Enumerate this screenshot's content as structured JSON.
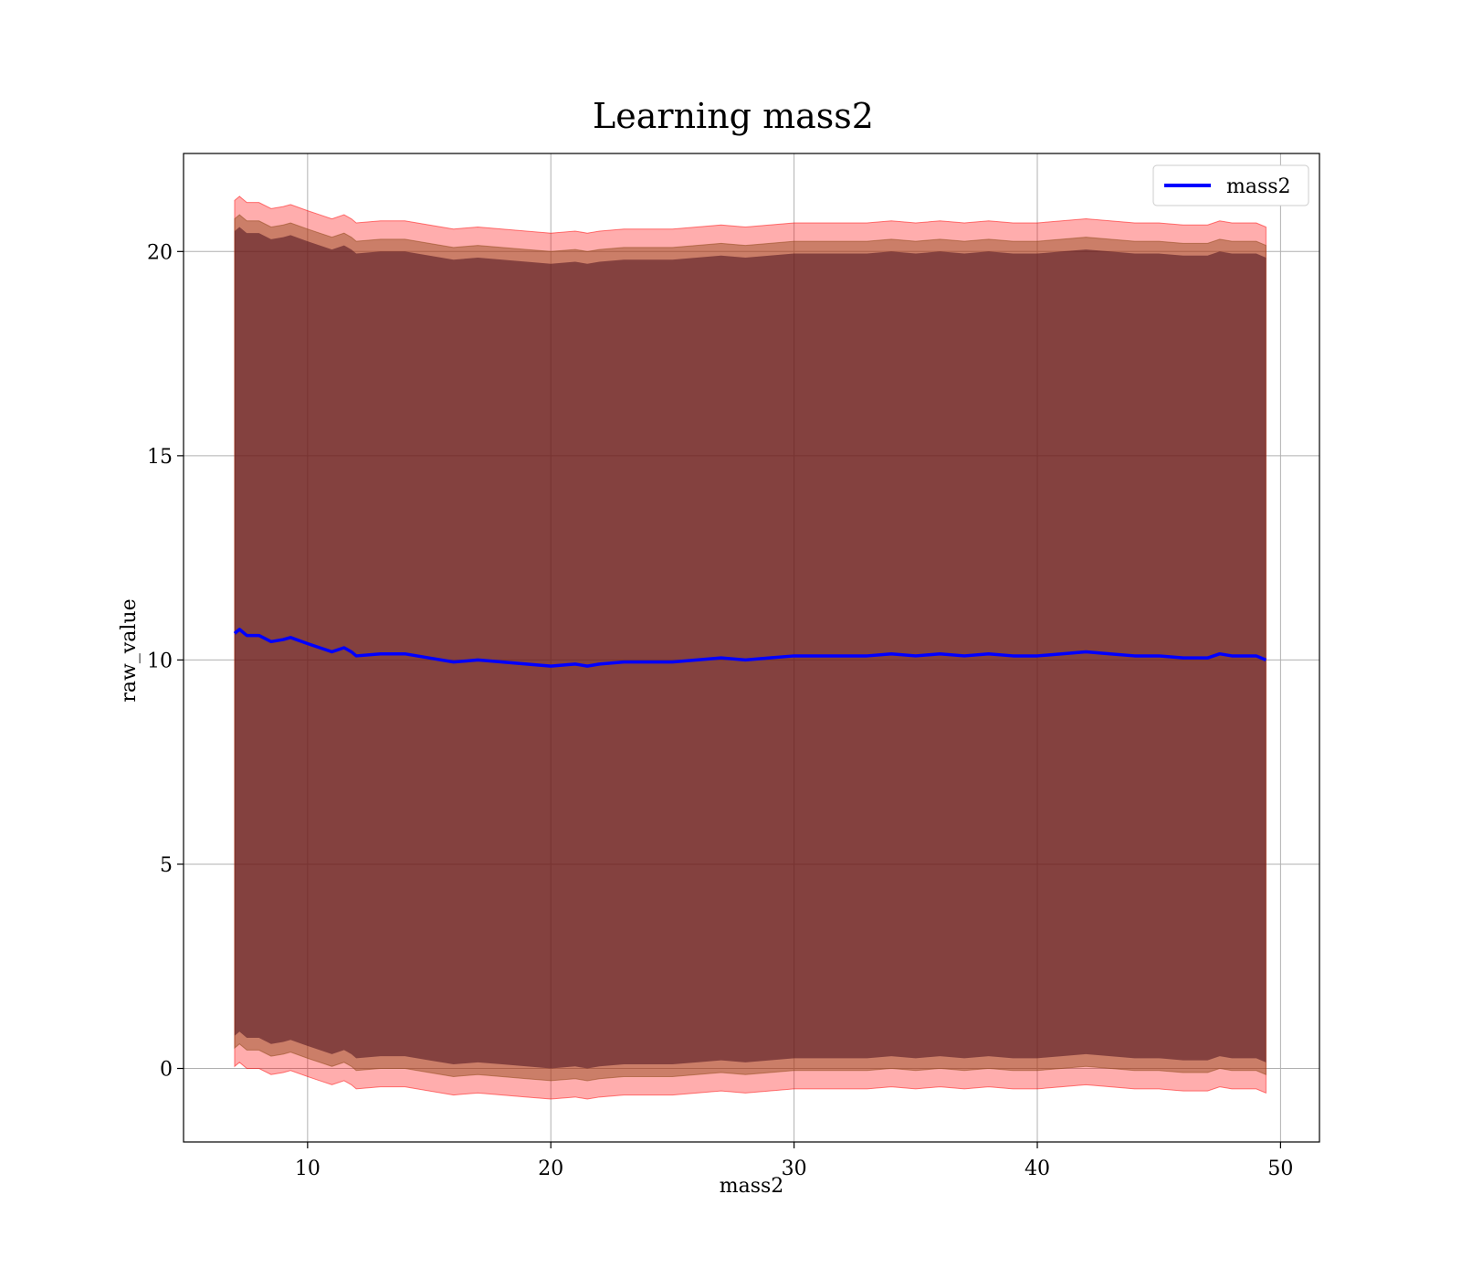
{
  "chart_data": {
    "type": "line",
    "title": "Learning mass2",
    "xlabel": "mass2",
    "ylabel": "raw_value",
    "xlim": [
      4.9,
      51.6
    ],
    "ylim": [
      -1.8,
      22.4
    ],
    "xticks": [
      10,
      20,
      30,
      40,
      50
    ],
    "yticks": [
      0,
      5,
      10,
      15,
      20
    ],
    "grid": true,
    "legend_position": "top-right",
    "colors": {
      "line": "#0000ff",
      "band_outer": "#ff0000",
      "band_inner": "#8b4513",
      "band_core": "#4b0f1e",
      "axes": "#000000",
      "grid": "#b0b0b0"
    },
    "series": [
      {
        "name": "mass2",
        "x": [
          7.0,
          7.2,
          7.5,
          8.0,
          8.5,
          9.0,
          9.3,
          10.0,
          10.5,
          11.0,
          11.5,
          11.8,
          12.0,
          13.0,
          14.0,
          15.0,
          16.0,
          17.0,
          18.0,
          19.0,
          20.0,
          21.0,
          21.5,
          22.0,
          23.0,
          24.0,
          25.0,
          26.0,
          27.0,
          28.0,
          29.0,
          30.0,
          31.0,
          32.0,
          33.0,
          34.0,
          35.0,
          36.0,
          37.0,
          38.0,
          39.0,
          40.0,
          41.0,
          42.0,
          43.0,
          44.0,
          45.0,
          46.0,
          47.0,
          47.5,
          48.0,
          49.0,
          49.4
        ],
        "y": [
          10.65,
          10.75,
          10.6,
          10.6,
          10.45,
          10.5,
          10.55,
          10.4,
          10.3,
          10.2,
          10.3,
          10.2,
          10.1,
          10.15,
          10.15,
          10.05,
          9.95,
          10.0,
          9.95,
          9.9,
          9.85,
          9.9,
          9.85,
          9.9,
          9.95,
          9.95,
          9.95,
          10.0,
          10.05,
          10.0,
          10.05,
          10.1,
          10.1,
          10.1,
          10.1,
          10.15,
          10.1,
          10.15,
          10.1,
          10.15,
          10.1,
          10.1,
          10.15,
          10.2,
          10.15,
          10.1,
          10.1,
          10.05,
          10.05,
          10.15,
          10.1,
          10.1,
          10.0
        ]
      }
    ],
    "bands": [
      {
        "level": "outer",
        "half_width": 10.6
      },
      {
        "level": "inner",
        "half_width": 10.15
      },
      {
        "level": "core",
        "half_width": 9.85
      }
    ]
  }
}
